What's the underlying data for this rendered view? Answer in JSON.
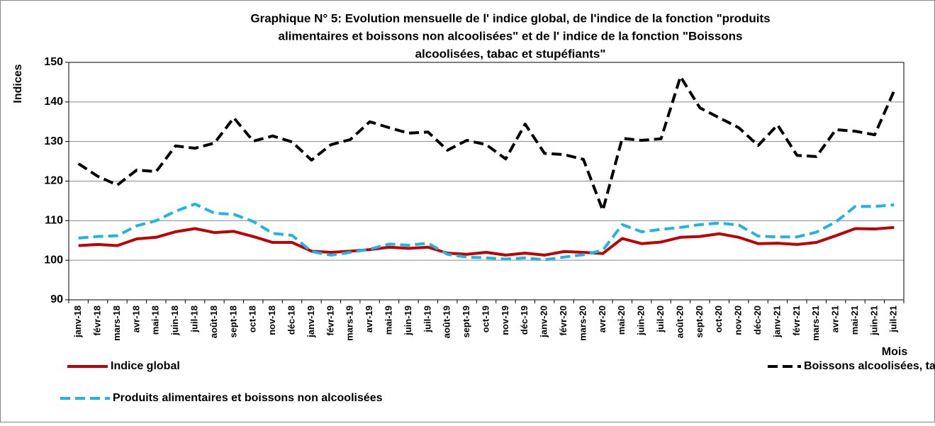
{
  "chart_data": {
    "type": "line",
    "title": [
      "Graphique N° 5: Evolution mensuelle de l' indice global, de l'indice de la fonction \"produits",
      "alimentaires et boissons non alcoolisées\" et de l' indice de la fonction \"Boissons",
      "alcoolisées, tabac et stupéfiants\""
    ],
    "y_label": "Indices",
    "x_label": "Mois",
    "categories": [
      "janv-18",
      "févr-18",
      "mars-18",
      "avr-18",
      "mai-18",
      "juin-18",
      "juil-18",
      "août-18",
      "sept-18",
      "oct-18",
      "nov-18",
      "déc-18",
      "janv-19",
      "févr-19",
      "mars-19",
      "avr-19",
      "mai-19",
      "juin-19",
      "juil-19",
      "août-19",
      "sept-19",
      "oct-19",
      "nov-19",
      "déc-19",
      "janv-20",
      "févr-20",
      "mars-20",
      "avr-20",
      "mai-20",
      "juin-20",
      "juil-20",
      "août-20",
      "sept-20",
      "oct-20",
      "nov-20",
      "déc-20",
      "janv-21",
      "févr-21",
      "mars-21",
      "avr-21",
      "mai-21",
      "juin-21",
      "juil-21"
    ],
    "series": [
      {
        "name": "Indice global",
        "color": "#c00000",
        "dash": false,
        "values": [
          103.7,
          104,
          103.7,
          105.4,
          105.8,
          107.2,
          108,
          107,
          107.3,
          106,
          104.5,
          104.5,
          102.3,
          102,
          102.3,
          102.7,
          103.3,
          103,
          103.3,
          101.8,
          101.5,
          102,
          101.3,
          101.8,
          101.3,
          102.2,
          102,
          101.7,
          105.5,
          104.2,
          104.6,
          105.8,
          106,
          106.7,
          105.8,
          104.2,
          104.3,
          104,
          104.5,
          106.2,
          108,
          107.9,
          108.3
        ]
      },
      {
        "name": "Boissons alcoolisées, tabac et stupéfiants",
        "color": "#000000",
        "dash": true,
        "values": [
          124.4,
          121.2,
          119,
          122.8,
          122.4,
          128.9,
          128.3,
          129.6,
          136,
          130.1,
          131.4,
          129.9,
          125.3,
          129.2,
          130.5,
          135,
          133.5,
          132.1,
          132.4,
          127.8,
          130.3,
          129.2,
          125.6,
          134.4,
          127,
          126.7,
          125.5,
          112.6,
          130.8,
          130.3,
          130.7,
          146.4,
          138.5,
          136,
          133.5,
          129,
          134.2,
          126.5,
          126.2,
          133,
          132.6,
          131.7,
          142.8
        ]
      },
      {
        "name": "Produits alimentaires et boissons non alcoolisées",
        "color": "#1fb4e8",
        "dash": true,
        "values": [
          105.6,
          106,
          106.2,
          108.7,
          110,
          112.4,
          114.2,
          111.9,
          111.6,
          109.8,
          106.8,
          106.3,
          102.2,
          101.3,
          102,
          102.8,
          104.1,
          103.8,
          104.3,
          101.5,
          100.8,
          100.6,
          100.3,
          100.6,
          100.1,
          100.8,
          101.4,
          102.5,
          109,
          107.2,
          107.8,
          108.3,
          109,
          109.4,
          108.9,
          106.1,
          105.9,
          105.9,
          107.1,
          109.7,
          113.6,
          113.6,
          114
        ]
      }
    ],
    "ylim": [
      90,
      150
    ],
    "yticks": [
      90,
      100,
      110,
      120,
      130,
      140,
      150
    ],
    "grid": true
  }
}
